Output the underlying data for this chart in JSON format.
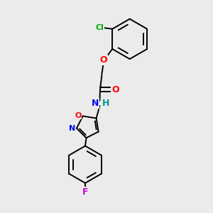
{
  "background_color": "#ebebeb",
  "bond_color": "#000000",
  "atom_colors": {
    "Cl": "#00aa00",
    "O": "#ff0000",
    "N": "#0000ee",
    "H": "#009999",
    "F": "#cc00cc"
  },
  "figsize": [
    3.0,
    3.0
  ],
  "dpi": 100
}
